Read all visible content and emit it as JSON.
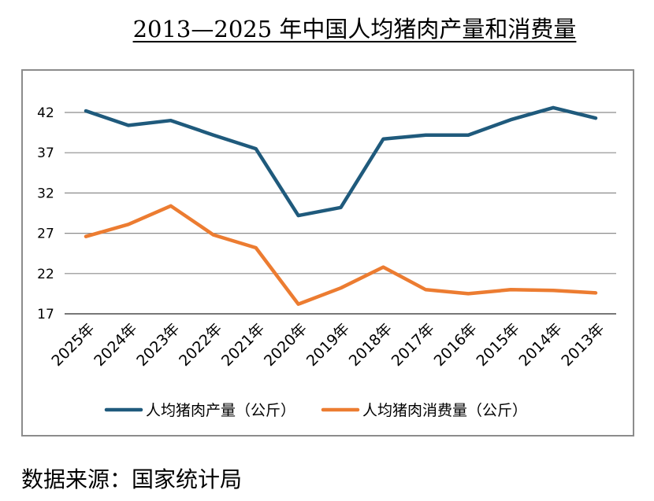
{
  "chart_data": {
    "type": "line",
    "title": "2013—2025 年中国人均猪肉产量和消费量",
    "categories": [
      "2025年",
      "2024年",
      "2023年",
      "2022年",
      "2021年",
      "2020年",
      "2019年",
      "2018年",
      "2017年",
      "2016年",
      "2015年",
      "2014年",
      "2013年"
    ],
    "series": [
      {
        "name": "人均猪肉产量（公斤）",
        "color": "#1f5a7c",
        "values": [
          42.2,
          40.4,
          41.0,
          39.2,
          37.5,
          29.2,
          30.2,
          38.7,
          39.2,
          39.2,
          41.1,
          42.6,
          41.3
        ]
      },
      {
        "name": "人均猪肉消费量（公斤）",
        "color": "#ec7c31",
        "values": [
          26.6,
          28.1,
          30.4,
          26.8,
          25.2,
          18.2,
          20.2,
          22.8,
          20.0,
          19.5,
          20.0,
          19.9,
          19.6
        ]
      }
    ],
    "yticks": [
      17,
      22,
      27,
      32,
      37,
      42
    ],
    "ylim": [
      17,
      45
    ],
    "grid": true,
    "legend_position": "bottom"
  },
  "source": "数据来源：国家统计局"
}
